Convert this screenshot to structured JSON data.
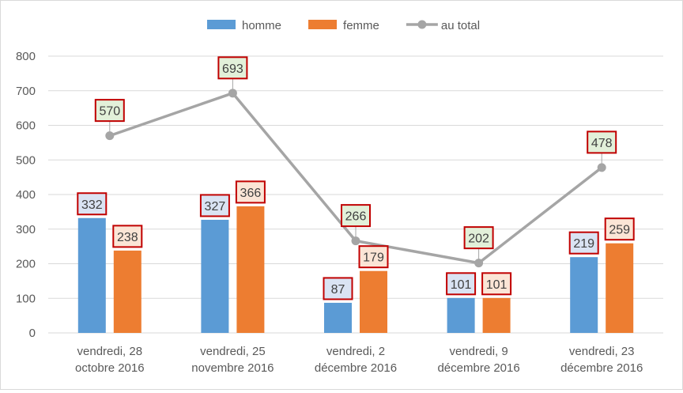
{
  "chart_data": {
    "type": "bar",
    "categories": [
      [
        "vendredi, 28",
        "octobre 2016"
      ],
      [
        "vendredi, 25",
        "novembre 2016"
      ],
      [
        "vendredi, 2",
        "décembre 2016"
      ],
      [
        "vendredi, 9",
        "décembre 2016"
      ],
      [
        "vendredi, 23",
        "décembre 2016"
      ]
    ],
    "series": [
      {
        "name": "homme",
        "kind": "bar",
        "color": "#5b9bd5",
        "values": [
          332,
          327,
          87,
          101,
          219
        ],
        "label_fill": "#dae3f3",
        "label_border": "#c00000"
      },
      {
        "name": "femme",
        "kind": "bar",
        "color": "#ed7d31",
        "values": [
          238,
          366,
          179,
          101,
          259
        ],
        "label_fill": "#fbe5d6",
        "label_border": "#c00000"
      },
      {
        "name": "au total",
        "kind": "line",
        "color": "#a5a5a5",
        "values": [
          570,
          693,
          266,
          202,
          478
        ],
        "label_fill": "#e2f0d9",
        "label_border": "#c00000"
      }
    ],
    "ylim": [
      0,
      800
    ],
    "yticks": [
      0,
      100,
      200,
      300,
      400,
      500,
      600,
      700,
      800
    ],
    "grid": true,
    "legend_position": "top"
  }
}
